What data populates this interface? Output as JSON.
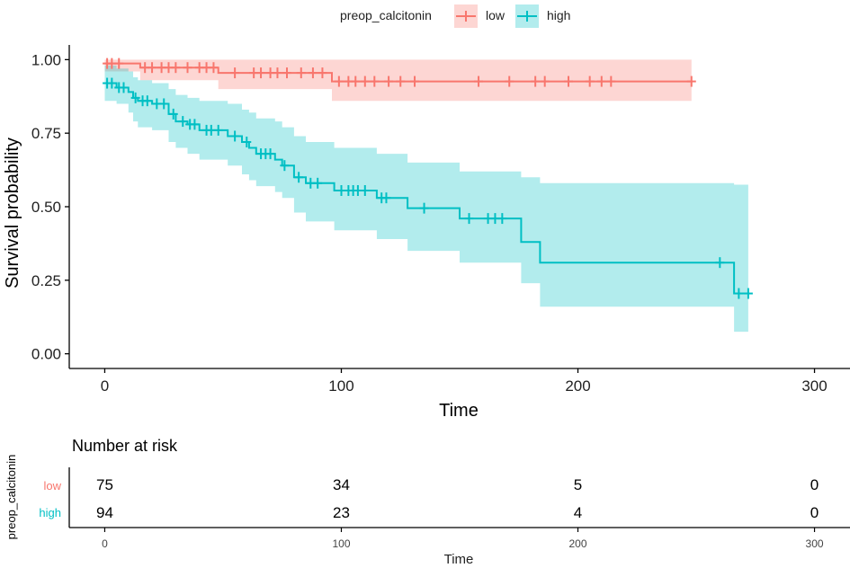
{
  "legend": {
    "title": "preop_calcitonin",
    "items": [
      {
        "label": "low",
        "color": "#F8766D",
        "fill": "#F8766D"
      },
      {
        "label": "high",
        "color": "#00BFC4",
        "fill": "#00BFC4"
      }
    ]
  },
  "chart_data": {
    "type": "line",
    "subtype": "kaplan-meier",
    "title": "",
    "xlabel": "Time",
    "ylabel": "Survival probability",
    "xlim": [
      -15,
      315
    ],
    "ylim": [
      -0.05,
      1.05
    ],
    "xticks": [
      0,
      100,
      200,
      300
    ],
    "xtick_labels": [
      "0",
      "100",
      "200",
      "300"
    ],
    "yticks": [
      0,
      0.25,
      0.5,
      0.75,
      1
    ],
    "ytick_labels": [
      "0.00",
      "0.25",
      "0.50",
      "0.75",
      "1.00"
    ],
    "grid": false,
    "legend_position": "top",
    "series": [
      {
        "name": "low",
        "color": "#F8766D",
        "steps": [
          {
            "t": 0,
            "s": 0.987,
            "lo": 0.96,
            "hi": 1.0
          },
          {
            "t": 15,
            "s": 0.973,
            "lo": 0.93,
            "hi": 1.0
          },
          {
            "t": 48,
            "s": 0.955,
            "lo": 0.9,
            "hi": 1.0
          },
          {
            "t": 96,
            "s": 0.926,
            "lo": 0.86,
            "hi": 1.0
          },
          {
            "t": 248,
            "s": 0.926,
            "lo": 0.86,
            "hi": 1.0
          }
        ],
        "censored": [
          {
            "t": 1,
            "s": 0.987
          },
          {
            "t": 3,
            "s": 0.987
          },
          {
            "t": 6,
            "s": 0.987
          },
          {
            "t": 17,
            "s": 0.973
          },
          {
            "t": 20,
            "s": 0.973
          },
          {
            "t": 24,
            "s": 0.973
          },
          {
            "t": 27,
            "s": 0.973
          },
          {
            "t": 30,
            "s": 0.973
          },
          {
            "t": 35,
            "s": 0.973
          },
          {
            "t": 40,
            "s": 0.973
          },
          {
            "t": 43,
            "s": 0.973
          },
          {
            "t": 46,
            "s": 0.973
          },
          {
            "t": 55,
            "s": 0.955
          },
          {
            "t": 63,
            "s": 0.955
          },
          {
            "t": 66,
            "s": 0.955
          },
          {
            "t": 70,
            "s": 0.955
          },
          {
            "t": 73,
            "s": 0.955
          },
          {
            "t": 77,
            "s": 0.955
          },
          {
            "t": 83,
            "s": 0.955
          },
          {
            "t": 88,
            "s": 0.955
          },
          {
            "t": 92,
            "s": 0.955
          },
          {
            "t": 99,
            "s": 0.926
          },
          {
            "t": 103,
            "s": 0.926
          },
          {
            "t": 106,
            "s": 0.926
          },
          {
            "t": 110,
            "s": 0.926
          },
          {
            "t": 114,
            "s": 0.926
          },
          {
            "t": 120,
            "s": 0.926
          },
          {
            "t": 125,
            "s": 0.926
          },
          {
            "t": 131,
            "s": 0.926
          },
          {
            "t": 158,
            "s": 0.926
          },
          {
            "t": 171,
            "s": 0.926
          },
          {
            "t": 182,
            "s": 0.926
          },
          {
            "t": 186,
            "s": 0.926
          },
          {
            "t": 196,
            "s": 0.926
          },
          {
            "t": 205,
            "s": 0.926
          },
          {
            "t": 210,
            "s": 0.926
          },
          {
            "t": 214,
            "s": 0.926
          },
          {
            "t": 248,
            "s": 0.926
          }
        ]
      },
      {
        "name": "high",
        "color": "#00BFC4",
        "steps": [
          {
            "t": 0,
            "s": 0.92,
            "lo": 0.86,
            "hi": 0.98
          },
          {
            "t": 5,
            "s": 0.905,
            "lo": 0.85,
            "hi": 0.97
          },
          {
            "t": 10,
            "s": 0.89,
            "lo": 0.82,
            "hi": 0.96
          },
          {
            "t": 12,
            "s": 0.87,
            "lo": 0.79,
            "hi": 0.94
          },
          {
            "t": 14,
            "s": 0.86,
            "lo": 0.77,
            "hi": 0.93
          },
          {
            "t": 20,
            "s": 0.85,
            "lo": 0.76,
            "hi": 0.92
          },
          {
            "t": 27,
            "s": 0.815,
            "lo": 0.72,
            "hi": 0.9
          },
          {
            "t": 30,
            "s": 0.79,
            "lo": 0.7,
            "hi": 0.88
          },
          {
            "t": 35,
            "s": 0.78,
            "lo": 0.68,
            "hi": 0.87
          },
          {
            "t": 40,
            "s": 0.76,
            "lo": 0.66,
            "hi": 0.86
          },
          {
            "t": 52,
            "s": 0.74,
            "lo": 0.64,
            "hi": 0.85
          },
          {
            "t": 58,
            "s": 0.72,
            "lo": 0.61,
            "hi": 0.83
          },
          {
            "t": 61,
            "s": 0.7,
            "lo": 0.59,
            "hi": 0.82
          },
          {
            "t": 64,
            "s": 0.68,
            "lo": 0.57,
            "hi": 0.8
          },
          {
            "t": 72,
            "s": 0.66,
            "lo": 0.55,
            "hi": 0.79
          },
          {
            "t": 75,
            "s": 0.64,
            "lo": 0.53,
            "hi": 0.77
          },
          {
            "t": 80,
            "s": 0.6,
            "lo": 0.48,
            "hi": 0.74
          },
          {
            "t": 85,
            "s": 0.58,
            "lo": 0.45,
            "hi": 0.72
          },
          {
            "t": 97,
            "s": 0.555,
            "lo": 0.42,
            "hi": 0.7
          },
          {
            "t": 115,
            "s": 0.53,
            "lo": 0.39,
            "hi": 0.68
          },
          {
            "t": 128,
            "s": 0.495,
            "lo": 0.35,
            "hi": 0.65
          },
          {
            "t": 150,
            "s": 0.46,
            "lo": 0.31,
            "hi": 0.62
          },
          {
            "t": 176,
            "s": 0.38,
            "lo": 0.24,
            "hi": 0.6
          },
          {
            "t": 184,
            "s": 0.31,
            "lo": 0.16,
            "hi": 0.58
          },
          {
            "t": 266,
            "s": 0.205,
            "lo": 0.075,
            "hi": 0.575
          },
          {
            "t": 272,
            "s": 0.205,
            "lo": 0.075,
            "hi": 0.575
          }
        ],
        "censored": [
          {
            "t": 1,
            "s": 0.92
          },
          {
            "t": 3,
            "s": 0.92
          },
          {
            "t": 6,
            "s": 0.905
          },
          {
            "t": 8,
            "s": 0.905
          },
          {
            "t": 13,
            "s": 0.87
          },
          {
            "t": 16,
            "s": 0.86
          },
          {
            "t": 18,
            "s": 0.86
          },
          {
            "t": 22,
            "s": 0.85
          },
          {
            "t": 25,
            "s": 0.85
          },
          {
            "t": 29,
            "s": 0.815
          },
          {
            "t": 33,
            "s": 0.79
          },
          {
            "t": 36,
            "s": 0.78
          },
          {
            "t": 38,
            "s": 0.78
          },
          {
            "t": 43,
            "s": 0.76
          },
          {
            "t": 45,
            "s": 0.76
          },
          {
            "t": 48,
            "s": 0.76
          },
          {
            "t": 55,
            "s": 0.74
          },
          {
            "t": 60,
            "s": 0.72
          },
          {
            "t": 66,
            "s": 0.68
          },
          {
            "t": 68,
            "s": 0.68
          },
          {
            "t": 70,
            "s": 0.68
          },
          {
            "t": 76,
            "s": 0.64
          },
          {
            "t": 82,
            "s": 0.6
          },
          {
            "t": 87,
            "s": 0.58
          },
          {
            "t": 90,
            "s": 0.58
          },
          {
            "t": 100,
            "s": 0.555
          },
          {
            "t": 103,
            "s": 0.555
          },
          {
            "t": 105,
            "s": 0.555
          },
          {
            "t": 107,
            "s": 0.555
          },
          {
            "t": 110,
            "s": 0.555
          },
          {
            "t": 117,
            "s": 0.53
          },
          {
            "t": 119,
            "s": 0.53
          },
          {
            "t": 135,
            "s": 0.495
          },
          {
            "t": 154,
            "s": 0.46
          },
          {
            "t": 162,
            "s": 0.46
          },
          {
            "t": 165,
            "s": 0.46
          },
          {
            "t": 168,
            "s": 0.46
          },
          {
            "t": 260,
            "s": 0.31
          },
          {
            "t": 268,
            "s": 0.205
          },
          {
            "t": 272,
            "s": 0.205
          }
        ]
      }
    ]
  },
  "risk_table": {
    "title": "Number at risk",
    "ylabel": "preop_calcitonin",
    "xlabel": "Time",
    "times": [
      0,
      100,
      200,
      300
    ],
    "time_labels": [
      "0",
      "100",
      "200",
      "300"
    ],
    "rows": [
      {
        "label": "low",
        "color": "#F8766D",
        "values": [
          "75",
          "34",
          "5",
          "0"
        ]
      },
      {
        "label": "high",
        "color": "#00BFC4",
        "values": [
          "94",
          "23",
          "4",
          "0"
        ]
      }
    ]
  }
}
